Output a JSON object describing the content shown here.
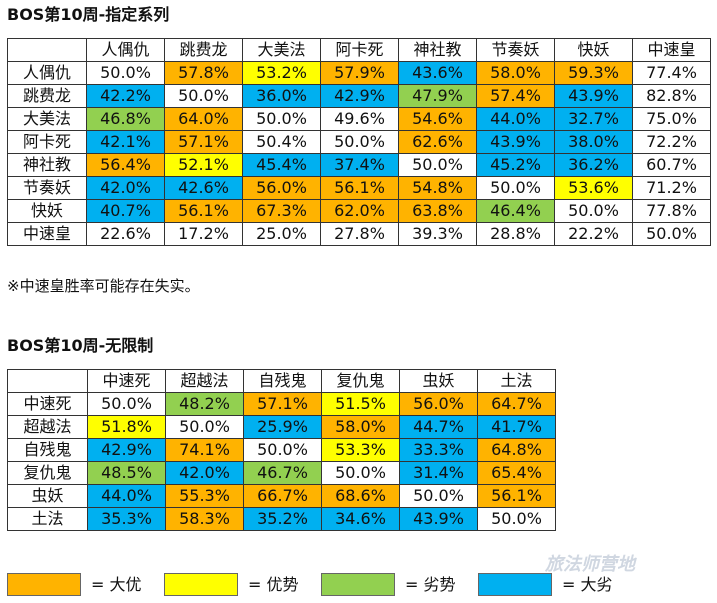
{
  "table1": {
    "title": "BOS第10周-指定系列",
    "headers": [
      "",
      "人偶仇",
      "跳费龙",
      "大美法",
      "阿卡死",
      "神社教",
      "节奏妖",
      "快妖",
      "中速皇"
    ],
    "rows": [
      {
        "label": "人偶仇",
        "values": [
          "50.0%",
          "57.8%",
          "53.2%",
          "57.9%",
          "43.6%",
          "58.0%",
          "59.3%",
          "77.4%"
        ],
        "colors": [
          "none",
          "bigadv",
          "adv",
          "bigadv",
          "bigdis",
          "bigadv",
          "bigadv",
          "none"
        ]
      },
      {
        "label": "跳费龙",
        "values": [
          "42.2%",
          "50.0%",
          "36.0%",
          "42.9%",
          "47.9%",
          "57.4%",
          "43.9%",
          "82.8%"
        ],
        "colors": [
          "bigdis",
          "none",
          "bigdis",
          "bigdis",
          "disadv",
          "bigadv",
          "bigdis",
          "none"
        ]
      },
      {
        "label": "大美法",
        "values": [
          "46.8%",
          "64.0%",
          "50.0%",
          "49.6%",
          "54.6%",
          "44.0%",
          "32.7%",
          "75.0%"
        ],
        "colors": [
          "disadv",
          "bigadv",
          "none",
          "none",
          "bigadv",
          "bigdis",
          "bigdis",
          "none"
        ]
      },
      {
        "label": "阿卡死",
        "values": [
          "42.1%",
          "57.1%",
          "50.4%",
          "50.0%",
          "62.6%",
          "43.9%",
          "38.0%",
          "72.2%"
        ],
        "colors": [
          "bigdis",
          "bigadv",
          "none",
          "none",
          "bigadv",
          "bigdis",
          "bigdis",
          "none"
        ]
      },
      {
        "label": "神社教",
        "values": [
          "56.4%",
          "52.1%",
          "45.4%",
          "37.4%",
          "50.0%",
          "45.2%",
          "36.2%",
          "60.7%"
        ],
        "colors": [
          "bigadv",
          "adv",
          "bigdis",
          "bigdis",
          "none",
          "bigdis",
          "bigdis",
          "none"
        ]
      },
      {
        "label": "节奏妖",
        "values": [
          "42.0%",
          "42.6%",
          "56.0%",
          "56.1%",
          "54.8%",
          "50.0%",
          "53.6%",
          "71.2%"
        ],
        "colors": [
          "bigdis",
          "bigdis",
          "bigadv",
          "bigadv",
          "bigadv",
          "none",
          "adv",
          "none"
        ]
      },
      {
        "label": "快妖",
        "values": [
          "40.7%",
          "56.1%",
          "67.3%",
          "62.0%",
          "63.8%",
          "46.4%",
          "50.0%",
          "77.8%"
        ],
        "colors": [
          "bigdis",
          "bigadv",
          "bigadv",
          "bigadv",
          "bigadv",
          "disadv",
          "none",
          "none"
        ]
      },
      {
        "label": "中速皇",
        "values": [
          "22.6%",
          "17.2%",
          "25.0%",
          "27.8%",
          "39.3%",
          "28.8%",
          "22.2%",
          "50.0%"
        ],
        "colors": [
          "none",
          "none",
          "none",
          "none",
          "none",
          "none",
          "none",
          "none"
        ]
      }
    ],
    "note": "※中速皇胜率可能存在失实。"
  },
  "table2": {
    "title": "BOS第10周-无限制",
    "headers": [
      "",
      "中速死",
      "超越法",
      "自残鬼",
      "复仇鬼",
      "虫妖",
      "土法"
    ],
    "rows": [
      {
        "label": "中速死",
        "values": [
          "50.0%",
          "48.2%",
          "57.1%",
          "51.5%",
          "56.0%",
          "64.7%"
        ],
        "colors": [
          "none",
          "disadv",
          "bigadv",
          "adv",
          "bigadv",
          "bigadv"
        ]
      },
      {
        "label": "超越法",
        "values": [
          "51.8%",
          "50.0%",
          "25.9%",
          "58.0%",
          "44.7%",
          "41.7%"
        ],
        "colors": [
          "adv",
          "none",
          "bigdis",
          "bigadv",
          "bigdis",
          "bigdis"
        ]
      },
      {
        "label": "自残鬼",
        "values": [
          "42.9%",
          "74.1%",
          "50.0%",
          "53.3%",
          "33.3%",
          "64.8%"
        ],
        "colors": [
          "bigdis",
          "bigadv",
          "none",
          "adv",
          "bigdis",
          "bigadv"
        ]
      },
      {
        "label": "复仇鬼",
        "values": [
          "48.5%",
          "42.0%",
          "46.7%",
          "50.0%",
          "31.4%",
          "65.4%"
        ],
        "colors": [
          "disadv",
          "bigdis",
          "disadv",
          "none",
          "bigdis",
          "bigadv"
        ]
      },
      {
        "label": "虫妖",
        "values": [
          "44.0%",
          "55.3%",
          "66.7%",
          "68.6%",
          "50.0%",
          "56.1%"
        ],
        "colors": [
          "bigdis",
          "bigadv",
          "bigadv",
          "bigadv",
          "none",
          "bigadv"
        ]
      },
      {
        "label": "土法",
        "values": [
          "35.3%",
          "58.3%",
          "35.2%",
          "34.6%",
          "43.9%",
          "50.0%"
        ],
        "colors": [
          "bigdis",
          "bigadv",
          "bigdis",
          "bigdis",
          "bigdis",
          "none"
        ]
      }
    ]
  },
  "legend": [
    {
      "label": "= 大优",
      "color": "#ffb300"
    },
    {
      "label": "= 优势",
      "color": "#ffff00"
    },
    {
      "label": "= 劣势",
      "color": "#92d050"
    },
    {
      "label": "= 大劣",
      "color": "#00b0f0"
    }
  ],
  "watermark": "旅法师营地"
}
